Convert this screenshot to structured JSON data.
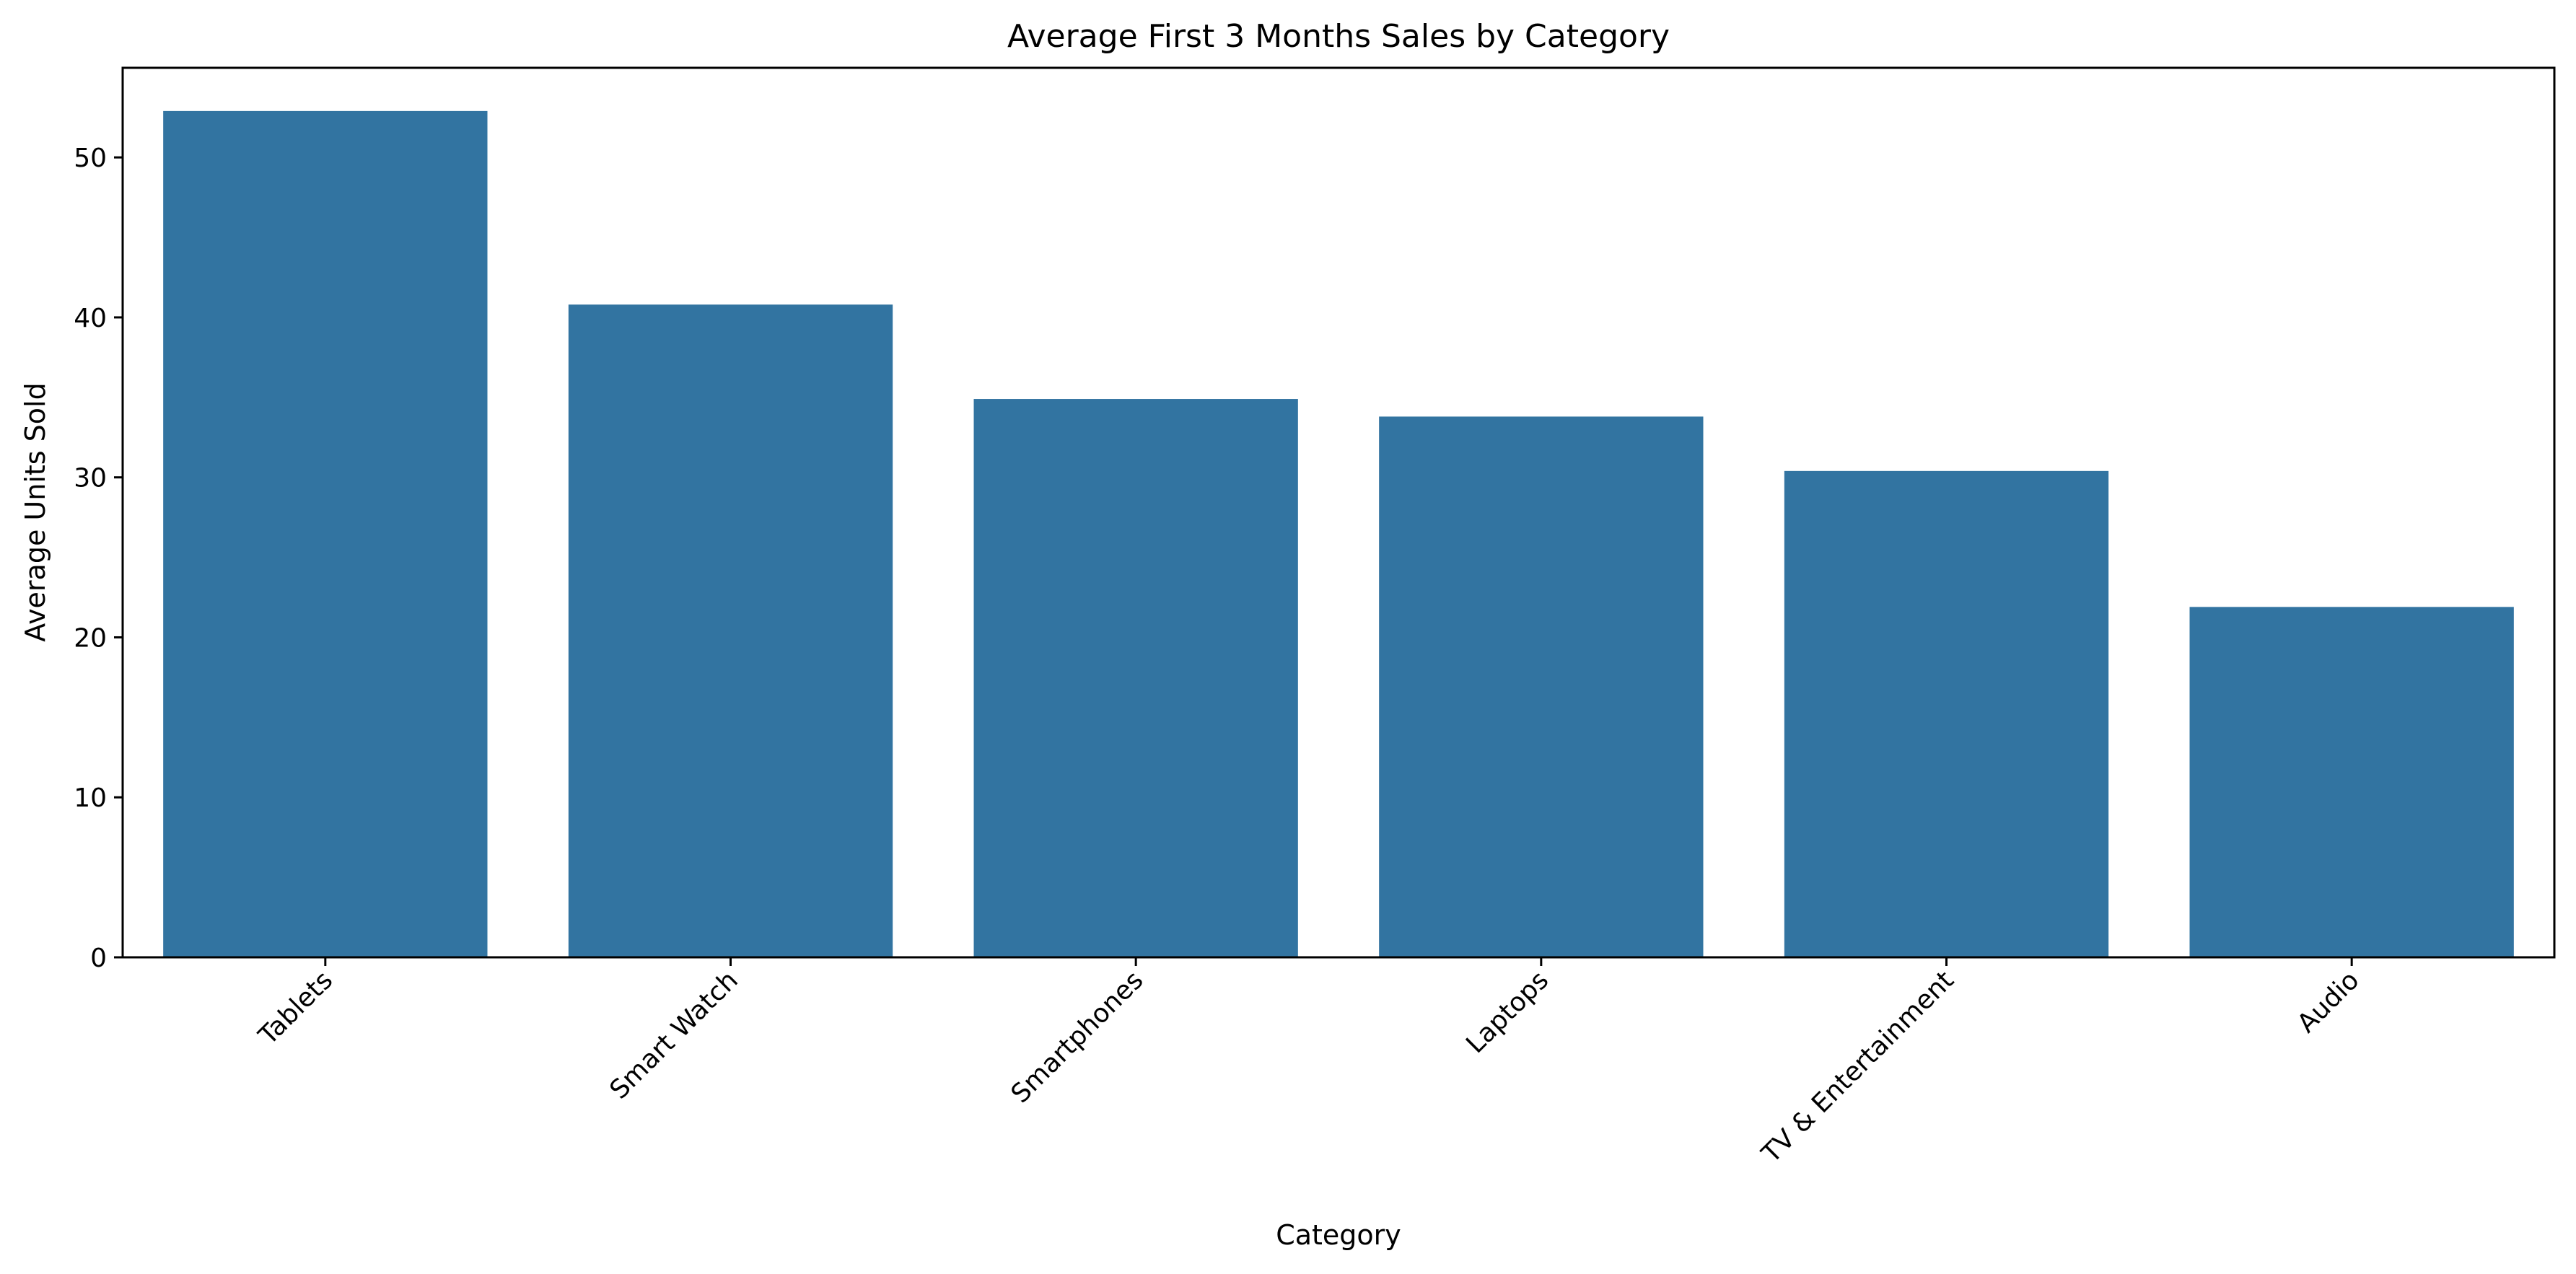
{
  "chart_data": {
    "type": "bar",
    "title": "Average First 3 Months Sales by Category",
    "xlabel": "Category",
    "ylabel": "Average Units Sold",
    "categories": [
      "Tablets",
      "Smart Watch",
      "Smartphones",
      "Laptops",
      "TV & Entertainment",
      "Audio"
    ],
    "values": [
      52.9,
      40.8,
      34.9,
      33.8,
      30.4,
      21.9
    ],
    "ylim": [
      0,
      55.6
    ],
    "yticks": [
      0,
      10,
      20,
      30,
      40,
      50
    ],
    "grid": false,
    "legend": "none",
    "bar_color": "#3274a1"
  }
}
